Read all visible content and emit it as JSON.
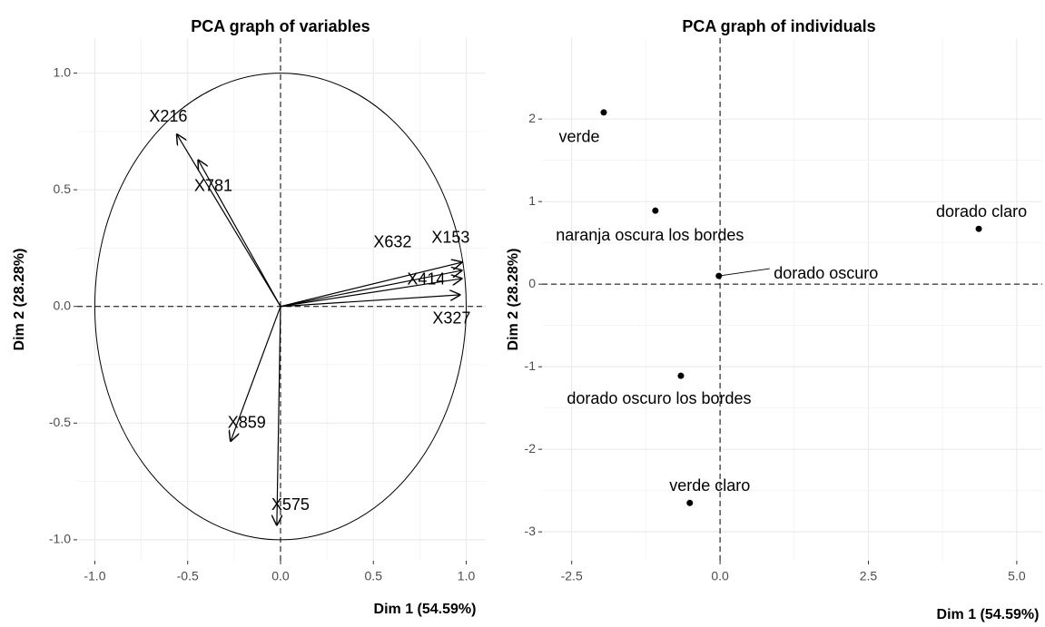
{
  "chart_data": [
    {
      "type": "vector",
      "title": "PCA graph of variables",
      "xlabel": "Dim 1 (54.59%)",
      "ylabel": "Dim 2 (28.28%)",
      "labels": [
        "X216",
        "X781",
        "X632",
        "X153",
        "X414",
        "X327",
        "X859",
        "X575"
      ],
      "x": [
        -0.56,
        -0.445,
        0.98,
        0.98,
        0.98,
        0.97,
        -0.27,
        -0.02
      ],
      "y": [
        0.74,
        0.63,
        0.155,
        0.19,
        0.12,
        0.05,
        -0.58,
        -0.94
      ],
      "color": "#000000",
      "xlim": [
        -1.095,
        1.105
      ],
      "ylim": [
        -1.09,
        1.15
      ],
      "xticks": [
        {
          "value": -1,
          "label": "-1.0"
        },
        -0.5,
        {
          "value": 0,
          "label": "0.0"
        },
        0.5,
        {
          "value": 1,
          "label": "1.0"
        }
      ],
      "yticks": [
        {
          "value": -1,
          "label": "-1.0"
        },
        -0.5,
        {
          "value": 0,
          "label": "0.0"
        },
        0.5,
        {
          "value": 1,
          "label": "1.0"
        }
      ],
      "grid": true
    },
    {
      "type": "scatter",
      "title": "PCA graph of individuals",
      "xlabel": "Dim 1 (54.59%)",
      "ylabel": "Dim 2 (28.28%)",
      "labels": [
        "verde",
        "naranja oscura los bordes",
        "dorado oscuro",
        "dorado claro",
        "dorado oscuro los bordes",
        "verde claro"
      ],
      "x": [
        -1.96,
        -1.09,
        -0.02,
        4.36,
        -0.66,
        -0.51
      ],
      "y": [
        2.08,
        0.89,
        0.1,
        0.67,
        -1.11,
        -2.65
      ],
      "color": "#000000",
      "xlim": [
        -3.0,
        5.43
      ],
      "ylim": [
        -3.35,
        2.98
      ],
      "xticks": [
        -2.5,
        {
          "value": 0,
          "label": "0.0"
        },
        2.5,
        {
          "value": 5,
          "label": "5.0"
        }
      ],
      "yticks": [
        -3,
        -2,
        -1,
        0,
        1,
        2
      ],
      "grid": true
    }
  ]
}
